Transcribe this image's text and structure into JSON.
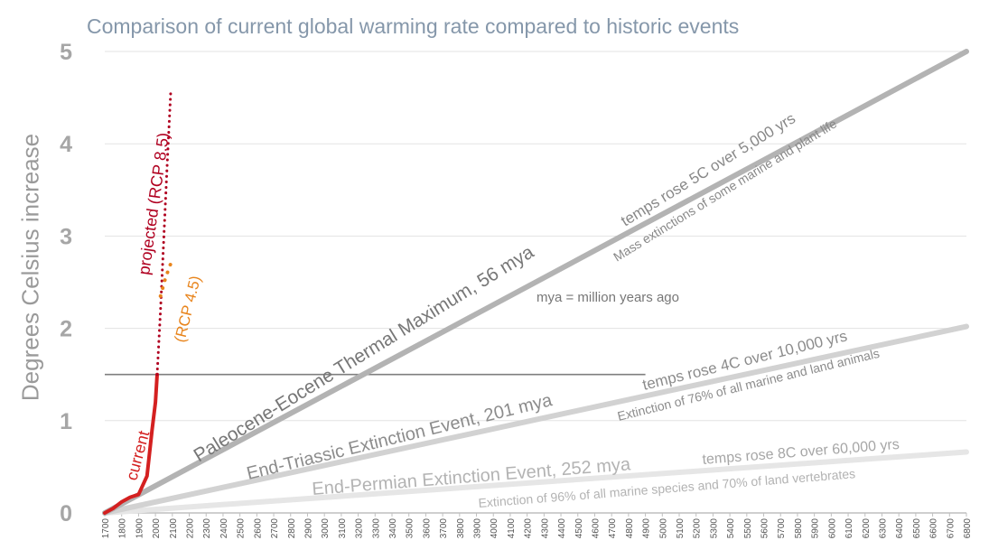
{
  "title": "Comparison of current global warming rate compared to historic events",
  "chart_data": {
    "type": "line",
    "title": "Comparison of current global warming rate compared to historic events",
    "xlabel": "",
    "ylabel": "Degrees Celsius increase",
    "xlim": [
      1700,
      6800
    ],
    "ylim": [
      0,
      5
    ],
    "x_ticks": [
      1700,
      1800,
      1900,
      2000,
      2100,
      2200,
      2300,
      2400,
      2500,
      2600,
      2700,
      2800,
      2900,
      3000,
      3100,
      3200,
      3300,
      3400,
      3500,
      3600,
      3700,
      3800,
      3900,
      4000,
      4100,
      4200,
      4300,
      4400,
      4500,
      4600,
      4700,
      4800,
      4900,
      5000,
      5100,
      5200,
      5300,
      5400,
      5500,
      5600,
      5700,
      5800,
      5900,
      6000,
      6100,
      6200,
      6300,
      6400,
      6500,
      6600,
      6700,
      6800
    ],
    "y_ticks": [
      0,
      1,
      2,
      3,
      4,
      5
    ],
    "grid": true,
    "reference_line": {
      "y": 1.5,
      "x": [
        1700,
        4900
      ]
    },
    "series": [
      {
        "name": "current",
        "style": "solid",
        "color": "#d42020",
        "x": [
          1700,
          1750,
          1800,
          1850,
          1900,
          1950,
          1980,
          2000,
          2010
        ],
        "y": [
          0.0,
          0.05,
          0.12,
          0.17,
          0.2,
          0.4,
          0.9,
          1.2,
          1.5
        ]
      },
      {
        "name": "projected (RCP 8.5)",
        "style": "dotted",
        "color": "#b00020",
        "x": [
          2010,
          2030,
          2050,
          2070,
          2090
        ],
        "y": [
          1.5,
          2.2,
          3.0,
          3.8,
          4.55
        ]
      },
      {
        "name": "(RCP 4.5)",
        "style": "dotted",
        "color": "#e8841c",
        "x": [
          2030,
          2060,
          2090
        ],
        "y": [
          2.35,
          2.55,
          2.7
        ]
      },
      {
        "name": "Paleocene-Eocene Thermal Maximum, 56 mya",
        "style": "solid",
        "color": "#b3b3b3",
        "x": [
          1700,
          6800
        ],
        "y": [
          0,
          5
        ]
      },
      {
        "name": "End-Triassic Extinction Event, 201 mya",
        "style": "solid",
        "color": "#d2d2d2",
        "x": [
          1700,
          6800
        ],
        "y": [
          0,
          2.02
        ]
      },
      {
        "name": "End-Permian Extinction Event, 252 mya",
        "style": "solid",
        "color": "#e6e6e6",
        "x": [
          1700,
          6800
        ],
        "y": [
          0,
          0.66
        ]
      }
    ],
    "annotations": {
      "current": "current",
      "projected": "projected (RCP 8.5)",
      "rcp45": "(RCP 4.5)",
      "mya_note": "mya = million years ago",
      "petm_label": "Paleocene-Eocene Thermal Maximum, 56 mya",
      "petm_rate": "temps rose 5C over 5,000 yrs",
      "petm_effect": "Mass extinctions of some marine and plant life",
      "triassic_label": "End-Triassic Extinction Event, 201 mya",
      "triassic_rate": "temps rose 4C over 10,000 yrs",
      "triassic_effect": "Extinction of 76% of all marine and land animals",
      "permian_label": "End-Permian Extinction Event, 252 mya",
      "permian_rate": "temps rose 8C over 60,000 yrs",
      "permian_effect": "Extinction of 96% of all marine species and 70% of land vertebrates"
    }
  }
}
